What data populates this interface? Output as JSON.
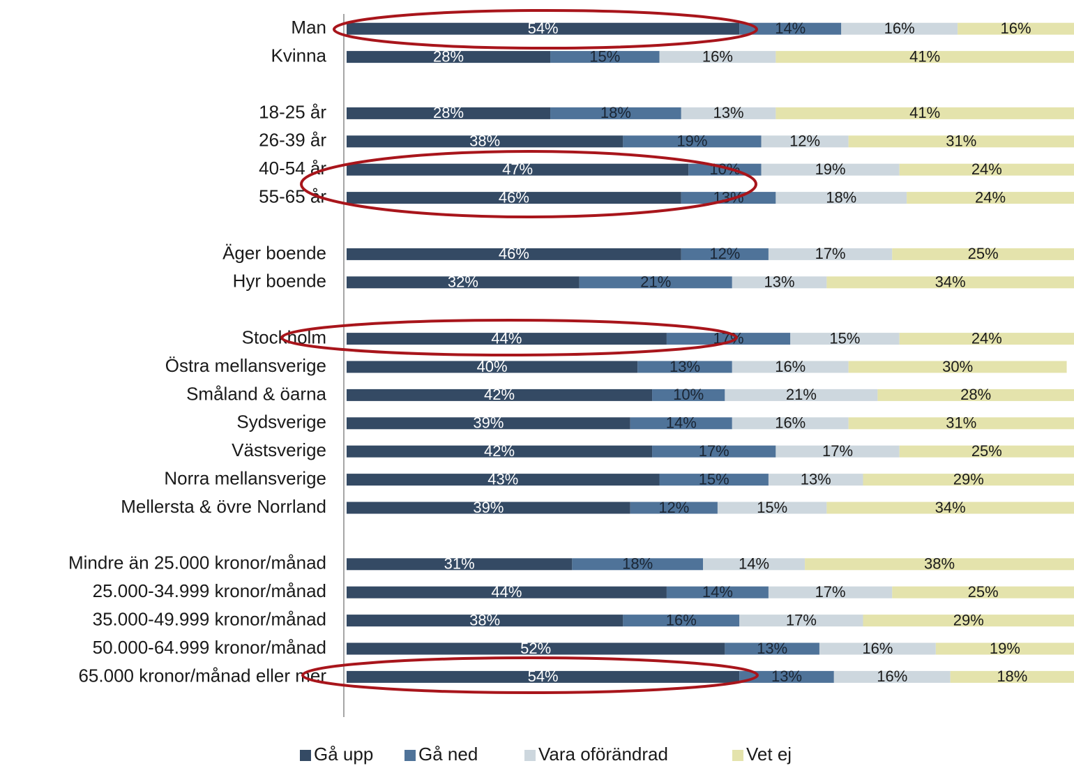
{
  "chart_data": {
    "type": "stacked-bar-horizontal",
    "categories": [
      "Man",
      "Kvinna",
      null,
      "18-25 år",
      "26-39 år",
      "40-54 år",
      "55-65 år",
      null,
      "Äger boende",
      "Hyr boende",
      null,
      "Stockholm",
      "Östra mellansverige",
      "Småland & öarna",
      "Sydsverige",
      "Västsverige",
      "Norra mellansverige",
      "Mellersta & övre Norrland",
      null,
      "Mindre än 25.000 kronor/månad",
      "25.000-34.999 kronor/månad",
      "35.000-49.999 kronor/månad",
      "50.000-64.999 kronor/månad",
      "65.000 kronor/månad eller mer",
      null
    ],
    "xlim": [
      0,
      100
    ],
    "legend": "bottom",
    "series": [
      {
        "name": "Gå upp",
        "color": "#344a64",
        "label_color": "#ffffff",
        "values": [
          54,
          28,
          null,
          28,
          38,
          47,
          46,
          null,
          46,
          32,
          null,
          44,
          40,
          42,
          39,
          42,
          43,
          39,
          null,
          31,
          44,
          38,
          52,
          54,
          null
        ],
        "value_labels": [
          "54%",
          "28%",
          null,
          "28%",
          "38%",
          "47%",
          "46%",
          null,
          "46%",
          "32%",
          null,
          "44%",
          "40%",
          "42%",
          "39%",
          "42%",
          "43%",
          "39%",
          null,
          "31%",
          "44%",
          "38%",
          "52%",
          "54%",
          null
        ]
      },
      {
        "name": "Gå ned",
        "color": "#4f7399",
        "label_color": "#1a2533",
        "values": [
          14,
          15,
          null,
          18,
          19,
          10,
          13,
          null,
          12,
          21,
          null,
          17,
          13,
          10,
          14,
          17,
          15,
          12,
          null,
          18,
          14,
          16,
          13,
          13,
          null
        ],
        "value_labels": [
          "14%",
          "15%",
          null,
          "18%",
          "19%",
          "10%",
          "13%",
          null,
          "12%",
          "21%",
          null,
          "17%",
          "13%",
          "10%",
          "14%",
          "17%",
          "15%",
          "12%",
          null,
          "18%",
          "14%",
          "16%",
          "13%",
          "13%",
          null
        ]
      },
      {
        "name": "Vara oförändrad",
        "color": "#cdd7de",
        "label_color": "#1a1a1a",
        "values": [
          16,
          16,
          null,
          13,
          12,
          19,
          18,
          null,
          17,
          13,
          null,
          15,
          16,
          21,
          16,
          17,
          13,
          15,
          null,
          14,
          17,
          17,
          16,
          16,
          null
        ],
        "value_labels": [
          "16%",
          "16%",
          null,
          "13%",
          "12%",
          "19%",
          "18%",
          null,
          "17%",
          "13%",
          null,
          "15%",
          "16%",
          "21%",
          "16%",
          "17%",
          "13%",
          "15%",
          null,
          "14%",
          "17%",
          "17%",
          "16%",
          "16%",
          null
        ]
      },
      {
        "name": "Vet ej",
        "color": "#e4e3ac",
        "label_color": "#1a1a1a",
        "values": [
          16,
          41,
          null,
          41,
          31,
          24,
          24,
          null,
          25,
          34,
          null,
          24,
          30,
          28,
          31,
          25,
          29,
          34,
          null,
          38,
          25,
          29,
          19,
          18,
          null
        ],
        "value_labels": [
          "16%",
          "41%",
          null,
          "41%",
          "31%",
          "24%",
          "24%",
          null,
          "25%",
          "34%",
          null,
          "24%",
          "30%",
          "28%",
          "31%",
          "25%",
          "29%",
          "34%",
          null,
          "38%",
          "25%",
          "29%",
          "19%",
          "18%",
          null
        ]
      }
    ]
  }
}
